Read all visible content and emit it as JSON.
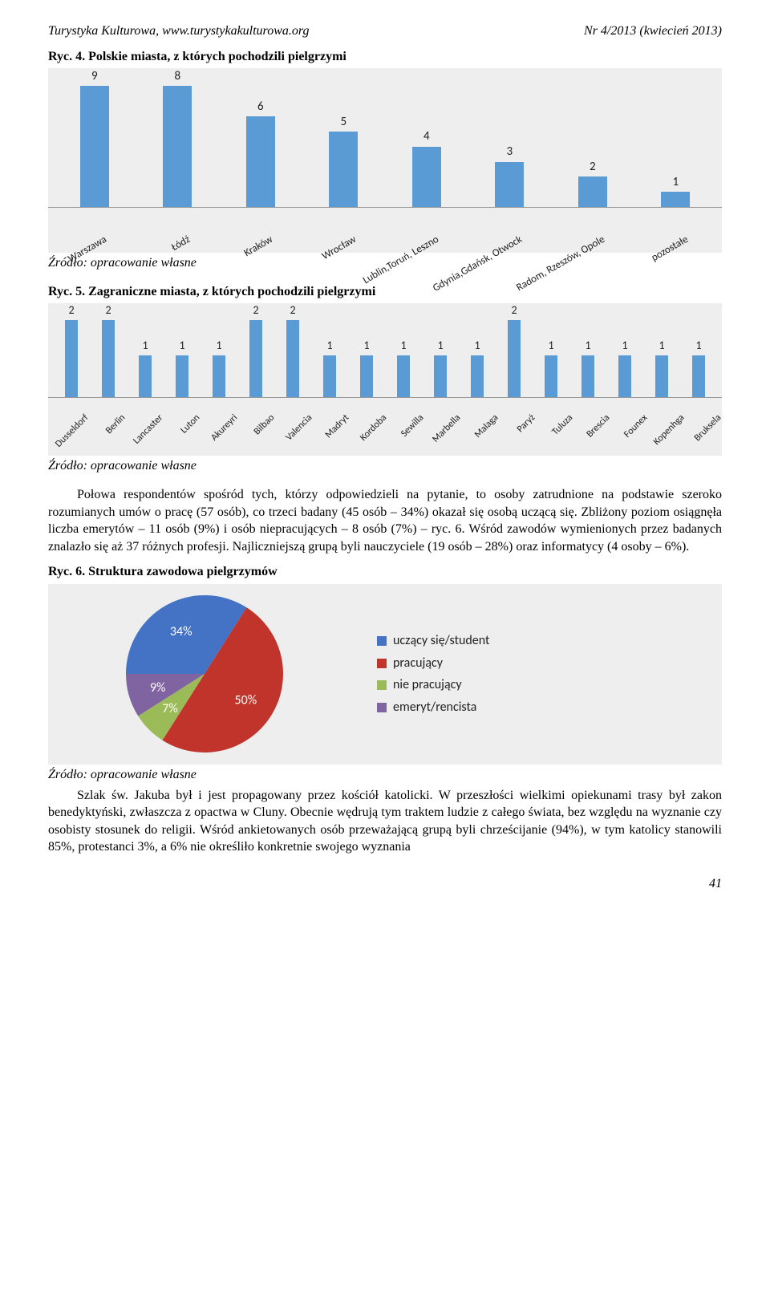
{
  "header": {
    "left": "Turystyka Kulturowa, www.turystykakulturowa.org",
    "right": "Nr 4/2013 (kwiecień 2013)"
  },
  "fig4": {
    "title_prefix": "Ryc. 4.",
    "title_rest": " Polskie miasta, z których pochodzili pielgrzymi",
    "type": "bar",
    "bar_color": "#5b9bd5",
    "background": "#eeeeee",
    "ymax": 9,
    "categories": [
      "Warszawa",
      "Łódź",
      "Kraków",
      "Wrocław",
      "Lublin,Toruń, Leszno",
      "Gdynia,Gdańsk, Otwock",
      "Radom, Rzeszów, Opole",
      "pozostałe"
    ],
    "values": [
      9,
      8,
      6,
      5,
      4,
      3,
      2,
      1
    ],
    "label_fontsize": 13,
    "value_fontsize": 15
  },
  "source_text": "Źródło: opracowanie własne",
  "fig5": {
    "title_prefix": "Ryc. 5.",
    "title_rest": " Zagraniczne miasta, z których pochodzili pielgrzymi",
    "type": "bar",
    "bar_color": "#5b9bd5",
    "background": "#eeeeee",
    "ymax": 2,
    "categories": [
      "Dusseldorf",
      "Berlin",
      "Lancaster",
      "Luton",
      "Akureyri",
      "Bilbao",
      "Valencia",
      "Madryt",
      "Kordoba",
      "Sewilla",
      "Marbella",
      "Malaga",
      "Paryż",
      "Tuluza",
      "Brescia",
      "Founex",
      "Kopenhga",
      "Bruksela"
    ],
    "values": [
      2,
      2,
      1,
      1,
      1,
      2,
      2,
      1,
      1,
      1,
      1,
      1,
      2,
      1,
      1,
      1,
      1,
      1
    ],
    "label_fontsize": 12,
    "value_fontsize": 14
  },
  "paragraph1": "Połowa respondentów spośród tych, którzy odpowiedzieli na pytanie, to osoby zatrudnione na podstawie szeroko rozumianych umów o pracę (57 osób), co trzeci badany (45 osób – 34%) okazał się osobą uczącą się. Zbliżony poziom osiągnęła liczba emerytów – 11 osób (9%) i osób niepracujących – 8 osób (7%) – ryc. 6. Wśród zawodów wymienionych przez badanych znalazło się aż 37 różnych profesji. Najliczniejszą grupą byli nauczyciele (19 osób – 28%) oraz informatycy (4 osoby – 6%).",
  "fig6": {
    "title_prefix": "Ryc. 6.",
    "title_rest": " Struktura zawodowa pielgrzymów",
    "type": "pie",
    "background": "#eeeeee",
    "slices": [
      {
        "label": "uczący się/student",
        "value": 34,
        "pct_label": "34%",
        "color": "#4472c4"
      },
      {
        "label": "pracujący",
        "value": 50,
        "pct_label": "50%",
        "color": "#c0342b"
      },
      {
        "label": "nie pracujący",
        "value": 7,
        "pct_label": "7%",
        "color": "#9bbb59"
      },
      {
        "label": "emeryt/rencista",
        "value": 9,
        "pct_label": "9%",
        "color": "#8064a2"
      }
    ],
    "label_color": "#ffffff"
  },
  "paragraph2": "Szlak św. Jakuba był i jest propagowany przez kościół katolicki. W przeszłości wielkimi opiekunami trasy był zakon benedyktyński, zwłaszcza z opactwa w Cluny. Obecnie wędrują tym traktem ludzie z całego świata, bez względu na wyznanie czy osobisty stosunek do religii. Wśród ankietowanych osób przeważającą grupą byli chrześcijanie (94%), w tym katolicy stanowili 85%, protestanci 3%, a 6% nie określiło konkretnie swojego wyznania",
  "page_number": "41"
}
